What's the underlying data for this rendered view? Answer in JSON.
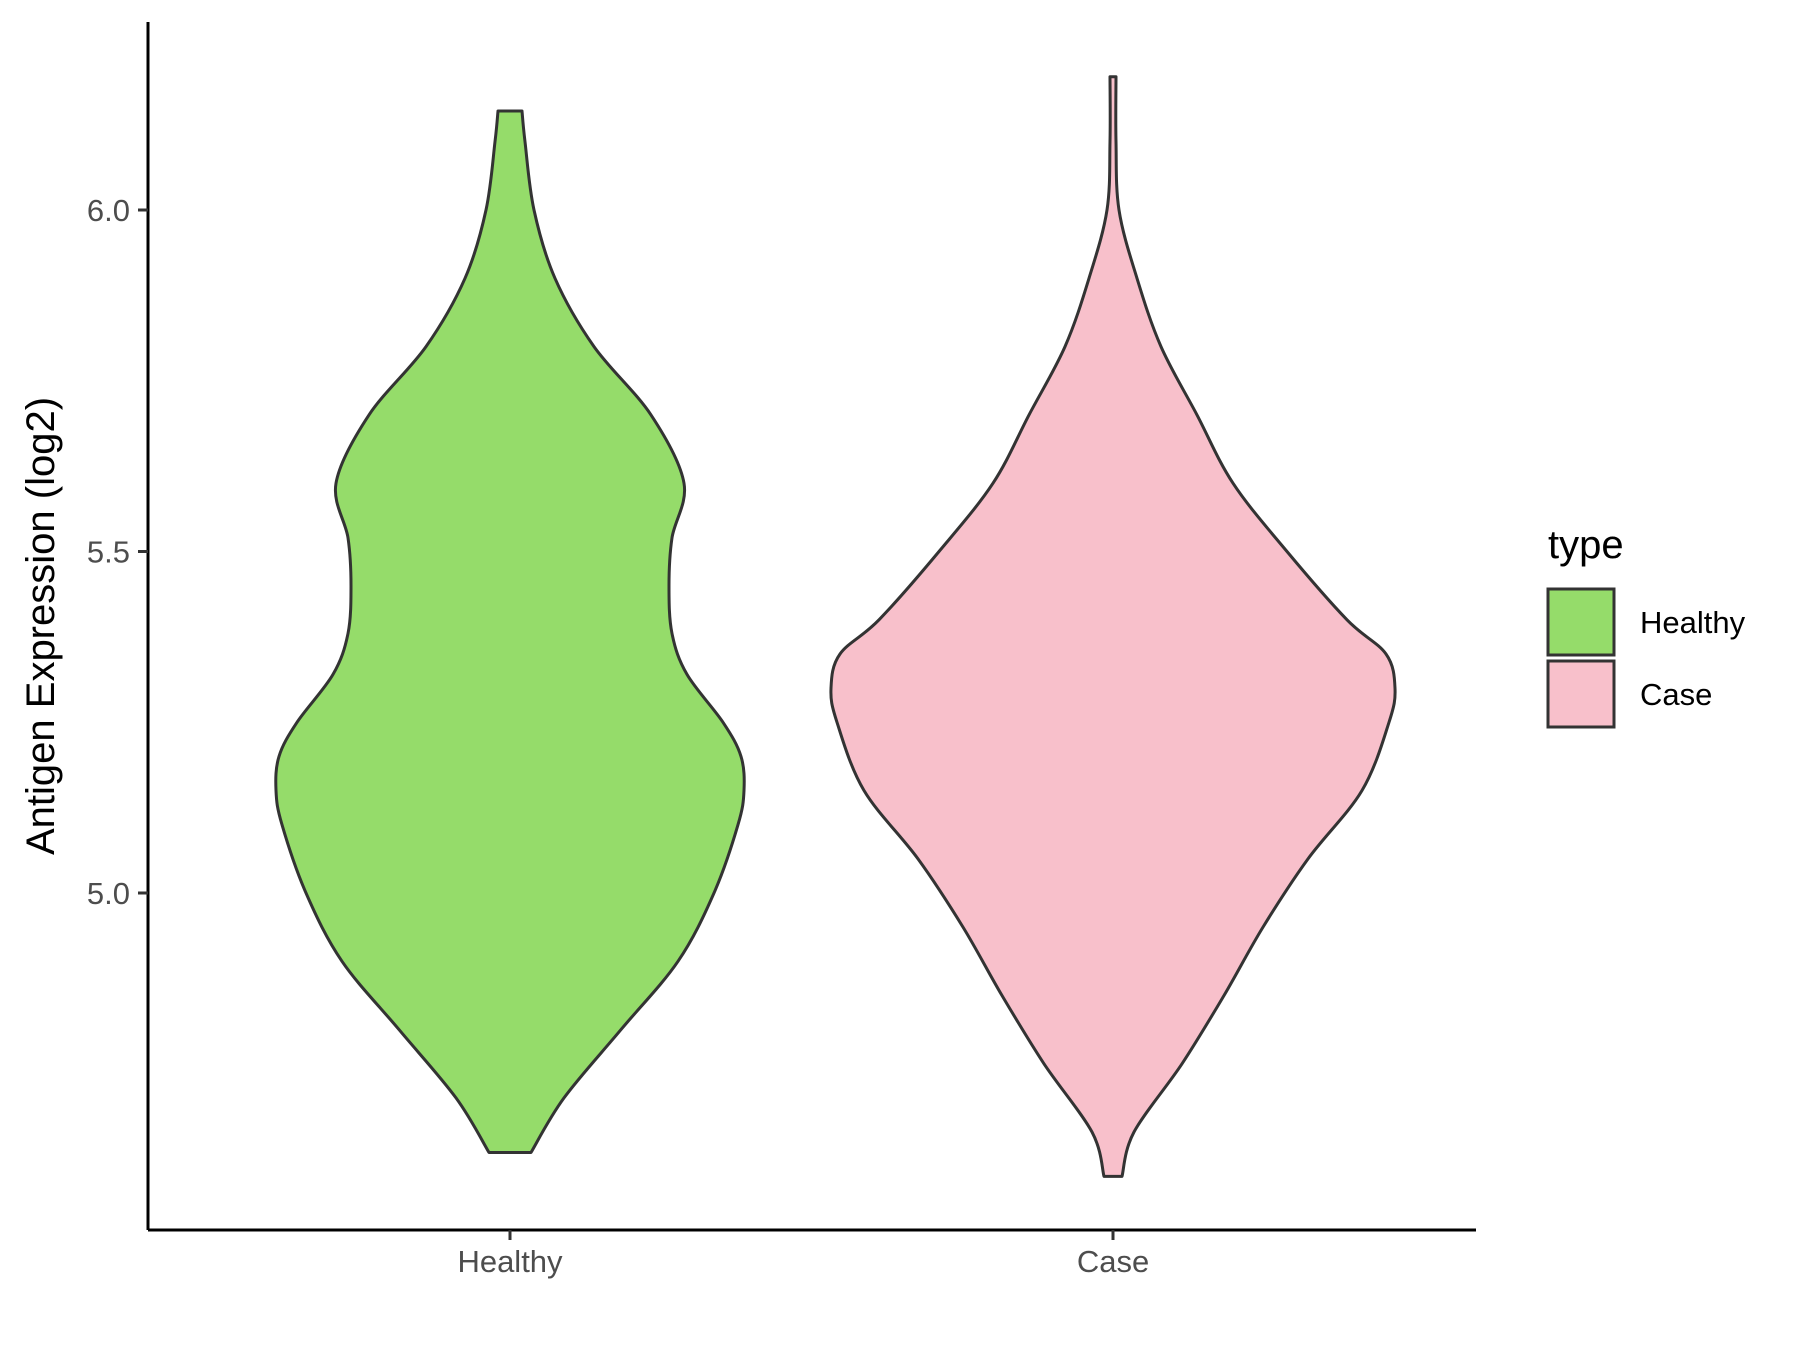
{
  "chart_data": {
    "type": "violin",
    "ylabel": "Antigen Expression (log2)",
    "xlabel": "",
    "categories": [
      "Healthy",
      "Case"
    ],
    "yticks": [
      5.0,
      5.5,
      6.0
    ],
    "ytick_labels": [
      "5.0",
      "5.5",
      "6.0"
    ],
    "ylim": [
      4.53,
      6.28
    ],
    "grid": false,
    "legend": {
      "title": "type",
      "position": "right",
      "entries": [
        {
          "label": "Healthy",
          "color": "#95dc6a"
        },
        {
          "label": "Case",
          "color": "#f8c0cb"
        }
      ]
    },
    "series": [
      {
        "category": "Healthy",
        "color": "#95dc6a",
        "min": 4.62,
        "max": 6.145,
        "profile": [
          [
            4.62,
            0.07
          ],
          [
            4.7,
            0.18
          ],
          [
            4.8,
            0.37
          ],
          [
            4.9,
            0.56
          ],
          [
            5.0,
            0.68
          ],
          [
            5.1,
            0.76
          ],
          [
            5.15,
            0.78
          ],
          [
            5.2,
            0.77
          ],
          [
            5.25,
            0.71
          ],
          [
            5.32,
            0.59
          ],
          [
            5.38,
            0.54
          ],
          [
            5.45,
            0.53
          ],
          [
            5.52,
            0.54
          ],
          [
            5.6,
            0.58
          ],
          [
            5.7,
            0.47
          ],
          [
            5.8,
            0.28
          ],
          [
            5.9,
            0.15
          ],
          [
            6.0,
            0.08
          ],
          [
            6.1,
            0.05
          ],
          [
            6.145,
            0.04
          ]
        ]
      },
      {
        "category": "Case",
        "color": "#f8c0cb",
        "min": 4.585,
        "max": 6.195,
        "profile": [
          [
            4.585,
            0.03
          ],
          [
            4.65,
            0.07
          ],
          [
            4.75,
            0.23
          ],
          [
            4.85,
            0.37
          ],
          [
            4.95,
            0.5
          ],
          [
            5.05,
            0.65
          ],
          [
            5.15,
            0.83
          ],
          [
            5.25,
            0.92
          ],
          [
            5.3,
            0.94
          ],
          [
            5.35,
            0.91
          ],
          [
            5.4,
            0.78
          ],
          [
            5.5,
            0.58
          ],
          [
            5.6,
            0.4
          ],
          [
            5.7,
            0.28
          ],
          [
            5.8,
            0.16
          ],
          [
            5.9,
            0.08
          ],
          [
            6.0,
            0.02
          ],
          [
            6.1,
            0.01
          ],
          [
            6.195,
            0.01
          ]
        ]
      }
    ]
  }
}
